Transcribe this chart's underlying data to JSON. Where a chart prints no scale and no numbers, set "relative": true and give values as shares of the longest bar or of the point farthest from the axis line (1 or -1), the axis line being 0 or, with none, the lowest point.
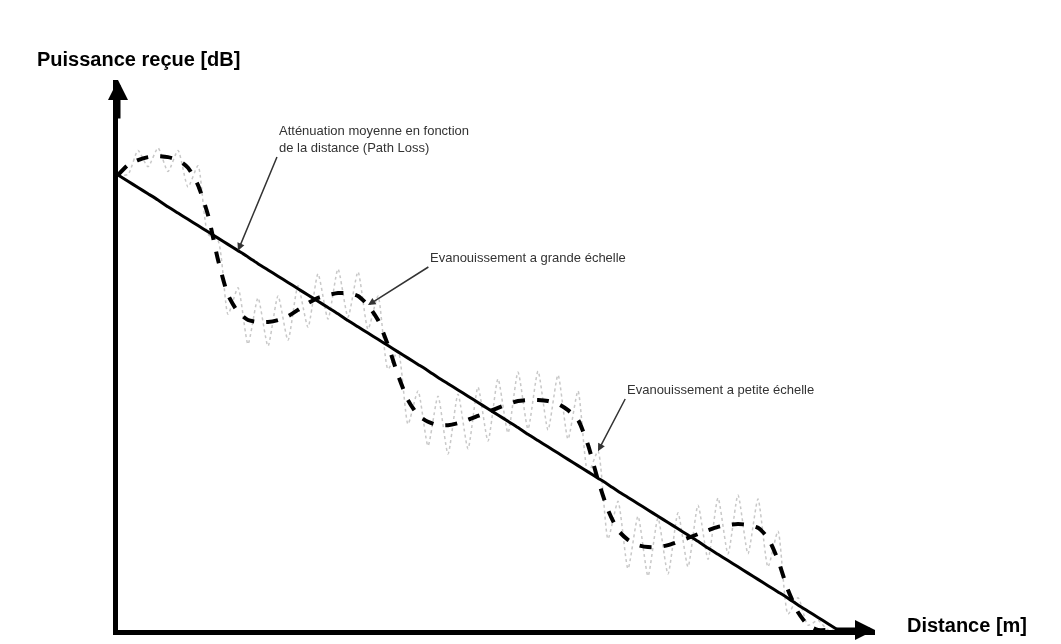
{
  "chart_data": {
    "type": "line",
    "relative": true,
    "xlabel": "Distance [m]",
    "ylabel": "Puissance reçue [dB]",
    "marker": "none",
    "categories": [
      null,
      null,
      null,
      null,
      null,
      null,
      null,
      null,
      null,
      null,
      null,
      null,
      null,
      null,
      null,
      null,
      null,
      null,
      null,
      null,
      null,
      null,
      null,
      null,
      null,
      null,
      null,
      null,
      null,
      null,
      null,
      null,
      null,
      null,
      null,
      null,
      null,
      null,
      null,
      null,
      null,
      null,
      null,
      null,
      null,
      null,
      null,
      null,
      null,
      null,
      null,
      null,
      null,
      null,
      null,
      null,
      null,
      null,
      null,
      null,
      null,
      null,
      null,
      null,
      null,
      null,
      null,
      null,
      null,
      null,
      null,
      null,
      null
    ],
    "series": [
      {
        "color": "#c8c8c8",
        "line_style": "dotted",
        "values": [
          0.944,
          0.945,
          0.995,
          0.961,
          1,
          0.951,
          0.995,
          0.919,
          0.963,
          0.821,
          0.808,
          0.655,
          0.71,
          0.593,
          0.689,
          0.589,
          0.693,
          0.601,
          0.714,
          0.628,
          0.739,
          0.645,
          0.749,
          0.649,
          0.743,
          0.624,
          0.693,
          0.541,
          0.579,
          0.427,
          0.496,
          0.382,
          0.485,
          0.365,
          0.489,
          0.376,
          0.504,
          0.392,
          0.521,
          0.409,
          0.535,
          0.417,
          0.537,
          0.415,
          0.529,
          0.396,
          0.496,
          0.324,
          0.371,
          0.189,
          0.267,
          0.127,
          0.236,
          0.112,
          0.232,
          0.116,
          0.243,
          0.131,
          0.259,
          0.147,
          0.274,
          0.158,
          0.28,
          0.158,
          0.272,
          0.131,
          0.205,
          0.033,
          0.067,
          0.01,
          0.02,
          0,
          0
        ]
      },
      {
        "color": "#000000",
        "line_style": "dashed",
        "values": [
          0.944,
          0.965,
          0.975,
          0.981,
          0.983,
          0.981,
          0.975,
          0.959,
          0.923,
          0.861,
          0.768,
          0.695,
          0.66,
          0.643,
          0.639,
          0.639,
          0.643,
          0.651,
          0.664,
          0.678,
          0.689,
          0.695,
          0.699,
          0.699,
          0.693,
          0.674,
          0.643,
          0.591,
          0.529,
          0.477,
          0.446,
          0.432,
          0.425,
          0.425,
          0.429,
          0.436,
          0.444,
          0.452,
          0.461,
          0.469,
          0.475,
          0.477,
          0.477,
          0.475,
          0.469,
          0.456,
          0.436,
          0.384,
          0.311,
          0.249,
          0.207,
          0.187,
          0.176,
          0.172,
          0.172,
          0.176,
          0.183,
          0.191,
          0.199,
          0.207,
          0.214,
          0.218,
          0.22,
          0.218,
          0.212,
          0.191,
          0.145,
          0.083,
          0.037,
          0.01,
          0,
          0,
          0
        ]
      },
      {
        "color": "#000000",
        "line_style": "solid",
        "values": [
          0.944,
          0.931,
          0.918,
          0.905,
          0.892,
          0.878,
          0.865,
          0.852,
          0.839,
          0.826,
          0.813,
          0.8,
          0.787,
          0.774,
          0.76,
          0.747,
          0.734,
          0.721,
          0.708,
          0.695,
          0.682,
          0.669,
          0.656,
          0.642,
          0.629,
          0.616,
          0.603,
          0.59,
          0.577,
          0.564,
          0.551,
          0.538,
          0.524,
          0.511,
          0.498,
          0.485,
          0.472,
          0.459,
          0.446,
          0.433,
          0.42,
          0.406,
          0.393,
          0.38,
          0.367,
          0.354,
          0.341,
          0.328,
          0.315,
          0.302,
          0.288,
          0.275,
          0.262,
          0.249,
          0.236,
          0.223,
          0.21,
          0.197,
          0.184,
          0.17,
          0.157,
          0.144,
          0.131,
          0.118,
          0.105,
          0.092,
          0.079,
          0.066,
          0.052,
          0.039,
          0.026,
          0.013,
          0
        ]
      }
    ],
    "annotations": [
      "Atténuation moyenne en fonction\nde la distance (Path Loss)",
      "Evanouissement a grande échelle",
      "Evanouissement a petite échelle"
    ]
  }
}
